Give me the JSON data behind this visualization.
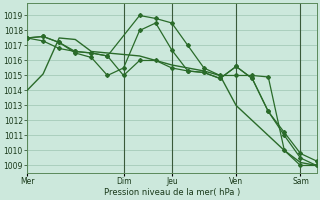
{
  "background_color": "#cce8dc",
  "grid_color": "#aacfbe",
  "line_color": "#2a6b2a",
  "marker_color": "#2a6b2a",
  "xlabel_text": "Pression niveau de la mer( hPa )",
  "ylim": [
    1008.5,
    1019.8
  ],
  "yticks": [
    1009,
    1010,
    1011,
    1012,
    1013,
    1014,
    1015,
    1016,
    1017,
    1018,
    1019
  ],
  "xtick_labels": [
    "Mer",
    "Dim",
    "Jeu",
    "Ven",
    "Sam"
  ],
  "xtick_positions": [
    0,
    6,
    9,
    13,
    17
  ],
  "vlines_dark": [
    6,
    9,
    13,
    17
  ],
  "vlines_left": [
    0
  ],
  "xlim": [
    0,
    18
  ],
  "series1_x": [
    0,
    1,
    2,
    3,
    4,
    5,
    6,
    7,
    8,
    9,
    10,
    11,
    12,
    13,
    14,
    15,
    16,
    17,
    18
  ],
  "series1_y": [
    1014.0,
    1015.1,
    1017.5,
    1017.4,
    1016.6,
    1016.5,
    1016.4,
    1016.3,
    1016.0,
    1015.7,
    1015.5,
    1015.3,
    1015.0,
    1013.0,
    1012.0,
    1011.0,
    1010.0,
    1009.2,
    1009.0
  ],
  "series2_x": [
    0,
    1,
    2,
    3,
    4,
    5,
    7,
    8,
    9,
    10,
    11,
    12,
    13,
    14,
    15,
    16,
    17,
    18
  ],
  "series2_y": [
    1017.5,
    1017.6,
    1017.2,
    1016.6,
    1016.5,
    1016.3,
    1019.0,
    1018.8,
    1018.5,
    1017.0,
    1015.5,
    1015.0,
    1015.0,
    1015.0,
    1014.9,
    1010.0,
    1009.0,
    1009.0
  ],
  "series3_x": [
    0,
    1,
    2,
    3,
    4,
    5,
    6,
    7,
    8,
    9,
    10,
    11,
    12,
    13,
    14,
    15,
    16,
    17,
    18
  ],
  "series3_y": [
    1017.5,
    1017.6,
    1017.2,
    1016.5,
    1016.2,
    1015.0,
    1015.5,
    1018.0,
    1018.5,
    1016.7,
    1015.3,
    1015.2,
    1014.8,
    1015.6,
    1014.8,
    1012.6,
    1011.0,
    1009.5,
    1009.0
  ],
  "series4_x": [
    0,
    1,
    2,
    3,
    4,
    5,
    6,
    7,
    8,
    9,
    10,
    11,
    12,
    13,
    14,
    15,
    16,
    17,
    18
  ],
  "series4_y": [
    1017.5,
    1017.3,
    1016.8,
    1016.6,
    1016.5,
    1016.3,
    1015.0,
    1016.0,
    1016.0,
    1015.5,
    1015.3,
    1015.2,
    1014.8,
    1015.6,
    1014.8,
    1012.6,
    1011.2,
    1009.8,
    1009.3
  ]
}
